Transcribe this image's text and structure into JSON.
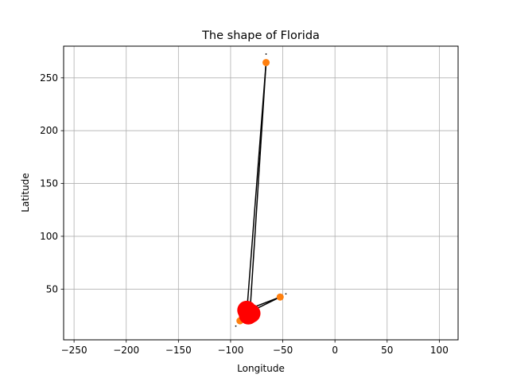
{
  "chart_data": {
    "type": "scatter",
    "title": "The shape of Florida",
    "xlabel": "Longitude",
    "ylabel": "Latitude",
    "xlim": [
      -260,
      118
    ],
    "ylim": [
      2,
      280
    ],
    "xticks": [
      -250,
      -200,
      -150,
      -100,
      -50,
      0,
      50,
      100
    ],
    "yticks": [
      50,
      100,
      150,
      200,
      250
    ],
    "grid": true,
    "line_color": "#000000",
    "marker_colors": {
      "small": "#ff7f0e",
      "large": "#ff0000"
    },
    "lines": [
      {
        "x": [
          -84.3,
          -66.0
        ],
        "y": [
          30.4,
          264.5
        ]
      },
      {
        "x": [
          -66.0,
          -81.4
        ],
        "y": [
          264.5,
          28.5
        ]
      },
      {
        "x": [
          -81.4,
          -52.5
        ],
        "y": [
          28.5,
          42.5
        ]
      },
      {
        "x": [
          -52.5,
          -85.5
        ],
        "y": [
          42.5,
          30.0
        ]
      },
      {
        "x": [
          -85.5,
          -91.0
        ],
        "y": [
          30.0,
          20.0
        ]
      }
    ],
    "points": [
      {
        "x": -66.0,
        "y": 264.5,
        "size": "small",
        "color": "#ff7f0e"
      },
      {
        "x": -52.5,
        "y": 42.5,
        "size": "small",
        "color": "#ff7f0e"
      },
      {
        "x": -91.0,
        "y": 20.0,
        "size": "small",
        "color": "#ff7f0e"
      },
      {
        "x": -84.5,
        "y": 30.0,
        "size": "large",
        "color": "#ff0000"
      },
      {
        "x": -80.5,
        "y": 27.0,
        "size": "large",
        "color": "#ff0000"
      },
      {
        "x": -83.0,
        "y": 25.5,
        "size": "large",
        "color": "#ff0000"
      }
    ],
    "dot_marks": [
      {
        "x": -66.0,
        "y": 272.5
      },
      {
        "x": -47.0,
        "y": 45.5
      },
      {
        "x": -95.0,
        "y": 15.0
      }
    ]
  }
}
